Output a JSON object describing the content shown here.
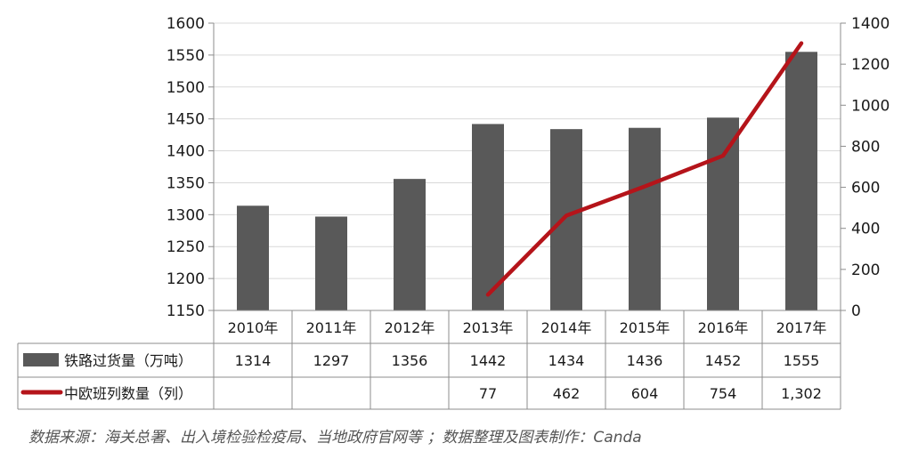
{
  "chart_data": {
    "type": "bar",
    "categories": [
      "2010年",
      "2011年",
      "2012年",
      "2013年",
      "2014年",
      "2015年",
      "2016年",
      "2017年"
    ],
    "series": [
      {
        "name": "铁路过货量（万吨）",
        "type": "bar",
        "axis": "left",
        "values": [
          1314,
          1297,
          1356,
          1442,
          1434,
          1436,
          1452,
          1555
        ],
        "table_values": [
          "1314",
          "1297",
          "1356",
          "1442",
          "1434",
          "1436",
          "1452",
          "1555"
        ]
      },
      {
        "name": "中欧班列数量（列）",
        "type": "line",
        "axis": "right",
        "values": [
          null,
          null,
          null,
          77,
          462,
          604,
          754,
          1302
        ],
        "table_values": [
          "",
          "",
          "",
          "77",
          "462",
          "604",
          "754",
          "1,302"
        ]
      }
    ],
    "y_left": {
      "ylim": [
        1150,
        1600
      ],
      "ticks": [
        1150,
        1200,
        1250,
        1300,
        1350,
        1400,
        1450,
        1500,
        1550,
        1600
      ]
    },
    "y_right": {
      "ylim": [
        0,
        1400
      ],
      "ticks": [
        0,
        200,
        400,
        600,
        800,
        1000,
        1200,
        1400
      ]
    },
    "grid": true,
    "legend": "data-table-left",
    "colors": {
      "bar": "#595959",
      "line": "#b5141a",
      "grid": "#d9d9d9",
      "axis": "#8c8c8c"
    }
  },
  "source_note": "数据来源：海关总署、出入境检验检疫局、当地政府官网等 ；数据整理及图表制作：Canda"
}
